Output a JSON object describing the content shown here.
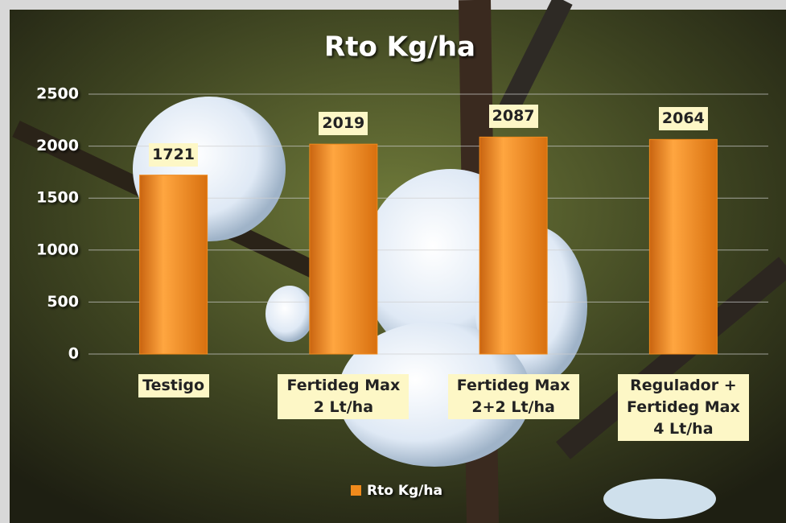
{
  "chart_data": {
    "type": "bar",
    "title": "Rto Kg/ha",
    "categories": [
      "Testigo",
      "Fertideg Max 2 Lt/ha",
      "Fertideg Max 2+2 Lt/ha",
      "Regulador + Fertideg Max 4 Lt/ha"
    ],
    "series": [
      {
        "name": "Rto Kg/ha",
        "color": "#f08a1c",
        "values": [
          1721,
          2019,
          2087,
          2064
        ]
      }
    ],
    "ylim": [
      0,
      2500
    ],
    "yticks": [
      0,
      500,
      1000,
      1500,
      2000,
      2500
    ],
    "grid": true,
    "legend": "bottom"
  }
}
